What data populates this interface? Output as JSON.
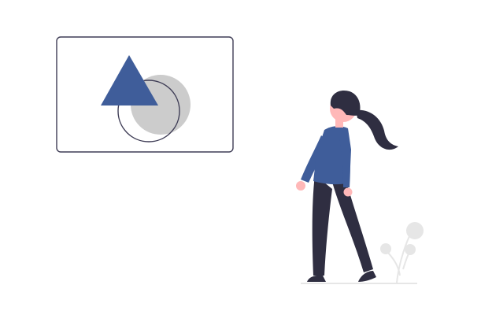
{
  "illustration": {
    "subject": "woman-looking-at-shapes-frame",
    "colors": {
      "background": "#ffffff",
      "frame_stroke": "#3f3d56",
      "accent": "#3f5d9a",
      "gray_light": "#e6e6e6",
      "gray_mid": "#cccccc",
      "dark": "#2f2e41",
      "skin": "#ffb8b8"
    },
    "icons": [
      "frame-icon",
      "triangle-icon",
      "circle-icon",
      "woman-figure",
      "plant-icon"
    ]
  }
}
